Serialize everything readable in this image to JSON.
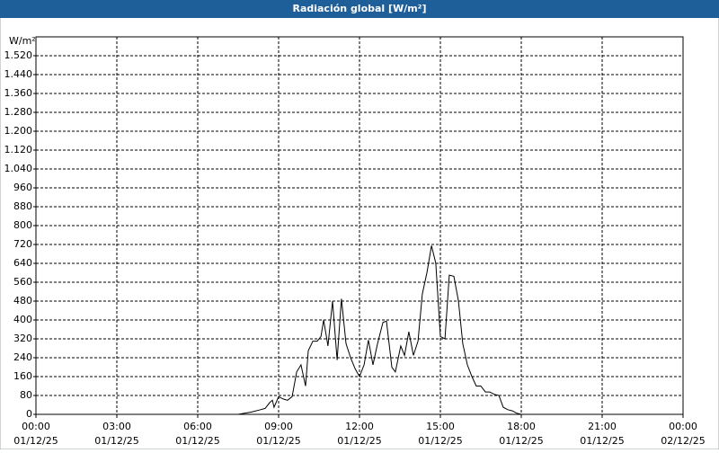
{
  "chart_data": {
    "type": "line",
    "title": "Radiación global [W/m²]",
    "ylabel": "W/m²",
    "color": "#000000",
    "grid": true,
    "x": [
      0,
      7.0,
      7.5,
      8.0,
      8.33,
      8.5,
      8.67,
      8.77,
      8.83,
      9.0,
      9.17,
      9.33,
      9.5,
      9.67,
      9.83,
      10.0,
      10.1,
      10.27,
      10.43,
      10.57,
      10.67,
      10.83,
      11.0,
      11.17,
      11.33,
      11.5,
      11.67,
      11.83,
      12.0,
      12.17,
      12.33,
      12.5,
      12.67,
      12.87,
      13.0,
      13.2,
      13.33,
      13.53,
      13.67,
      13.83,
      14.0,
      14.17,
      14.33,
      14.5,
      14.67,
      14.83,
      15.0,
      15.17,
      15.33,
      15.5,
      15.67,
      15.83,
      16.0,
      16.17,
      16.33,
      16.5,
      16.67,
      16.83,
      17.0,
      17.17,
      17.33,
      17.5,
      17.67,
      17.83,
      18.0,
      23.83
    ],
    "values": [
      0,
      0,
      0,
      10,
      20,
      25,
      50,
      60,
      30,
      75,
      65,
      60,
      75,
      180,
      210,
      120,
      270,
      310,
      310,
      330,
      400,
      290,
      480,
      230,
      490,
      300,
      240,
      195,
      160,
      210,
      315,
      210,
      300,
      390,
      395,
      200,
      180,
      290,
      250,
      350,
      250,
      310,
      510,
      600,
      715,
      640,
      330,
      320,
      590,
      585,
      480,
      300,
      210,
      160,
      120,
      120,
      95,
      95,
      85,
      80,
      30,
      20,
      15,
      5,
      0,
      0
    ],
    "xlim": [
      0,
      24
    ],
    "xticks": [
      {
        "value": 0,
        "label": "00:00",
        "sublabel": "01/12/25"
      },
      {
        "value": 3,
        "label": "03:00",
        "sublabel": "01/12/25"
      },
      {
        "value": 6,
        "label": "06:00",
        "sublabel": "01/12/25"
      },
      {
        "value": 9,
        "label": "09:00",
        "sublabel": "01/12/25"
      },
      {
        "value": 12,
        "label": "12:00",
        "sublabel": "01/12/25"
      },
      {
        "value": 15,
        "label": "15:00",
        "sublabel": "01/12/25"
      },
      {
        "value": 18,
        "label": "18:00",
        "sublabel": "01/12/25"
      },
      {
        "value": 21,
        "label": "21:00",
        "sublabel": "01/12/25"
      },
      {
        "value": 24,
        "label": "00:00",
        "sublabel": "02/12/25"
      }
    ],
    "ylim": [
      0,
      1600
    ],
    "yticks": [
      0,
      80,
      160,
      240,
      320,
      400,
      480,
      560,
      640,
      720,
      800,
      880,
      960,
      {
        "value": 1040,
        "label": "1.040"
      },
      {
        "value": 1120,
        "label": "1.120"
      },
      {
        "value": 1200,
        "label": "1.200"
      },
      {
        "value": 1280,
        "label": "1.280"
      },
      {
        "value": 1360,
        "label": "1.360"
      },
      {
        "value": 1440,
        "label": "1.440"
      },
      {
        "value": 1520,
        "label": "1.520"
      }
    ]
  }
}
